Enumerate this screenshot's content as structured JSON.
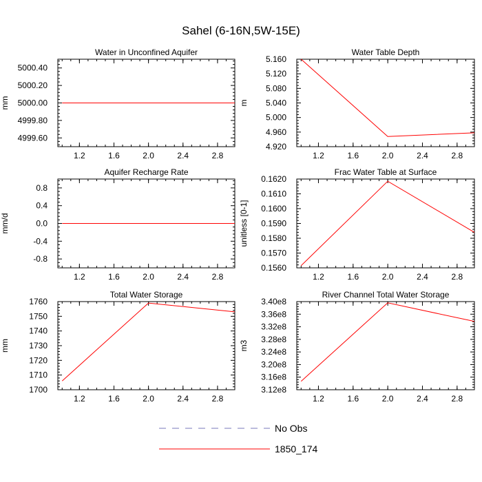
{
  "title": "Sahel (6-16N,5W-15E)",
  "colors": {
    "series": "#ff0000",
    "obs": "#7777bb"
  },
  "legend": [
    {
      "label": "No Obs",
      "style": "dashed",
      "color": "#7777bb"
    },
    {
      "label": "1850_174",
      "style": "solid",
      "color": "#ff0000"
    }
  ],
  "chart_data": [
    {
      "type": "line",
      "title": "Water in Unconfined Aquifer",
      "ylabel": "mm",
      "xlim": [
        0.95,
        3.0
      ],
      "ylim": [
        4999.5,
        5000.5
      ],
      "xticks": [
        1.2,
        1.6,
        2.0,
        2.4,
        2.8
      ],
      "xtick_labels": [
        "1.2",
        "1.6",
        "2.0",
        "2.4",
        "2.8"
      ],
      "yticks": [
        4999.6,
        4999.8,
        5000.0,
        5000.2,
        5000.4
      ],
      "ytick_labels": [
        "4999.60",
        "4999.80",
        "5000.00",
        "5000.20",
        "5000.40"
      ],
      "series": [
        {
          "name": "1850_174",
          "x": [
            1,
            2,
            3
          ],
          "y": [
            5000.0,
            5000.0,
            5000.0
          ]
        }
      ]
    },
    {
      "type": "line",
      "title": "Water Table Depth",
      "ylabel": "m",
      "xlim": [
        0.95,
        3.0
      ],
      "ylim": [
        4.92,
        5.16
      ],
      "xticks": [
        1.2,
        1.6,
        2.0,
        2.4,
        2.8
      ],
      "xtick_labels": [
        "1.2",
        "1.6",
        "2.0",
        "2.4",
        "2.8"
      ],
      "yticks": [
        4.92,
        4.96,
        5.0,
        5.04,
        5.08,
        5.12,
        5.16
      ],
      "ytick_labels": [
        "4.920",
        "4.960",
        "5.000",
        "5.040",
        "5.080",
        "5.120",
        "5.160"
      ],
      "series": [
        {
          "name": "1850_174",
          "x": [
            1,
            2,
            3
          ],
          "y": [
            5.16,
            4.948,
            4.958
          ]
        }
      ]
    },
    {
      "type": "line",
      "title": "Aquifer Recharge Rate",
      "ylabel": "mm/d",
      "xlim": [
        0.95,
        3.0
      ],
      "ylim": [
        -1.0,
        1.0
      ],
      "xticks": [
        1.2,
        1.6,
        2.0,
        2.4,
        2.8
      ],
      "xtick_labels": [
        "1.2",
        "1.6",
        "2.0",
        "2.4",
        "2.8"
      ],
      "yticks": [
        -0.8,
        -0.4,
        0.0,
        0.4,
        0.8
      ],
      "ytick_labels": [
        "-0.8",
        "-0.4",
        "0.0",
        "0.4",
        "0.8"
      ],
      "series": [
        {
          "name": "1850_174",
          "x": [
            1,
            2,
            3
          ],
          "y": [
            0.0,
            0.0,
            0.0
          ]
        }
      ]
    },
    {
      "type": "line",
      "title": "Frac Water Table at Surface",
      "ylabel": "unitless [0-1]",
      "xlim": [
        0.95,
        3.0
      ],
      "ylim": [
        0.156,
        0.162
      ],
      "xticks": [
        1.2,
        1.6,
        2.0,
        2.4,
        2.8
      ],
      "xtick_labels": [
        "1.2",
        "1.6",
        "2.0",
        "2.4",
        "2.8"
      ],
      "yticks": [
        0.156,
        0.157,
        0.158,
        0.159,
        0.16,
        0.161,
        0.162
      ],
      "ytick_labels": [
        "0.1560",
        "0.1570",
        "0.1580",
        "0.1590",
        "0.1600",
        "0.1610",
        "0.1620"
      ],
      "series": [
        {
          "name": "1850_174",
          "x": [
            1,
            2,
            3
          ],
          "y": [
            0.15615,
            0.16185,
            0.1584
          ]
        }
      ]
    },
    {
      "type": "line",
      "title": "Total Water Storage",
      "ylabel": "mm",
      "xlim": [
        0.95,
        3.0
      ],
      "ylim": [
        1700,
        1760
      ],
      "xticks": [
        1.2,
        1.6,
        2.0,
        2.4,
        2.8
      ],
      "xtick_labels": [
        "1.2",
        "1.6",
        "2.0",
        "2.4",
        "2.8"
      ],
      "yticks": [
        1700,
        1710,
        1720,
        1730,
        1740,
        1750,
        1760
      ],
      "ytick_labels": [
        "1700",
        "1710",
        "1720",
        "1730",
        "1740",
        "1750",
        "1760"
      ],
      "series": [
        {
          "name": "1850_174",
          "x": [
            1,
            2,
            3
          ],
          "y": [
            1706,
            1759,
            1753
          ]
        }
      ]
    },
    {
      "type": "line",
      "title": "River Channel Total Water Storage",
      "ylabel": "m3",
      "xlim": [
        0.95,
        3.0
      ],
      "ylim": [
        312000000,
        340000000
      ],
      "xticks": [
        1.2,
        1.6,
        2.0,
        2.4,
        2.8
      ],
      "xtick_labels": [
        "1.2",
        "1.6",
        "2.0",
        "2.4",
        "2.8"
      ],
      "yticks": [
        312000000,
        316000000,
        320000000,
        324000000,
        328000000,
        332000000,
        336000000,
        340000000
      ],
      "ytick_labels": [
        "3.12e8",
        "3.16e8",
        "3.20e8",
        "3.24e8",
        "3.28e8",
        "3.32e8",
        "3.36e8",
        "3.40e8"
      ],
      "series": [
        {
          "name": "1850_174",
          "x": [
            1,
            2,
            3
          ],
          "y": [
            314700000,
            339600000,
            333700000
          ]
        }
      ]
    }
  ]
}
